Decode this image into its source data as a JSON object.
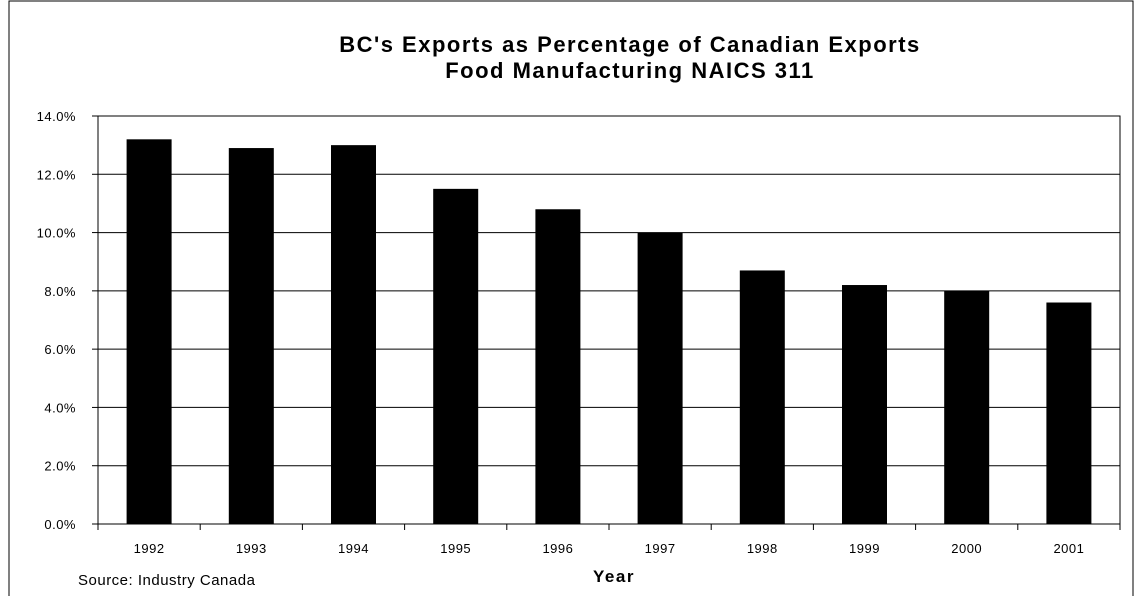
{
  "chart_data": {
    "type": "bar",
    "title": "BC's Exports as Percentage of Canadian Exports",
    "subtitle": "Food Manufacturing NAICS 311",
    "xlabel": "Year",
    "ylabel": "",
    "source": "Source:  Industry Canada",
    "categories": [
      "1992",
      "1993",
      "1994",
      "1995",
      "1996",
      "1997",
      "1998",
      "1999",
      "2000",
      "2001"
    ],
    "values": [
      13.2,
      12.9,
      13.0,
      11.5,
      10.8,
      10.0,
      8.7,
      8.2,
      8.0,
      7.6
    ],
    "ylim": [
      0,
      14
    ],
    "yticks": [
      "0.0%",
      "2.0%",
      "4.0%",
      "6.0%",
      "8.0%",
      "10.0%",
      "12.0%",
      "14.0%"
    ],
    "grid": true,
    "colors": {
      "bar": "#000000",
      "grid": "#000000",
      "background": "#ffffff"
    }
  }
}
